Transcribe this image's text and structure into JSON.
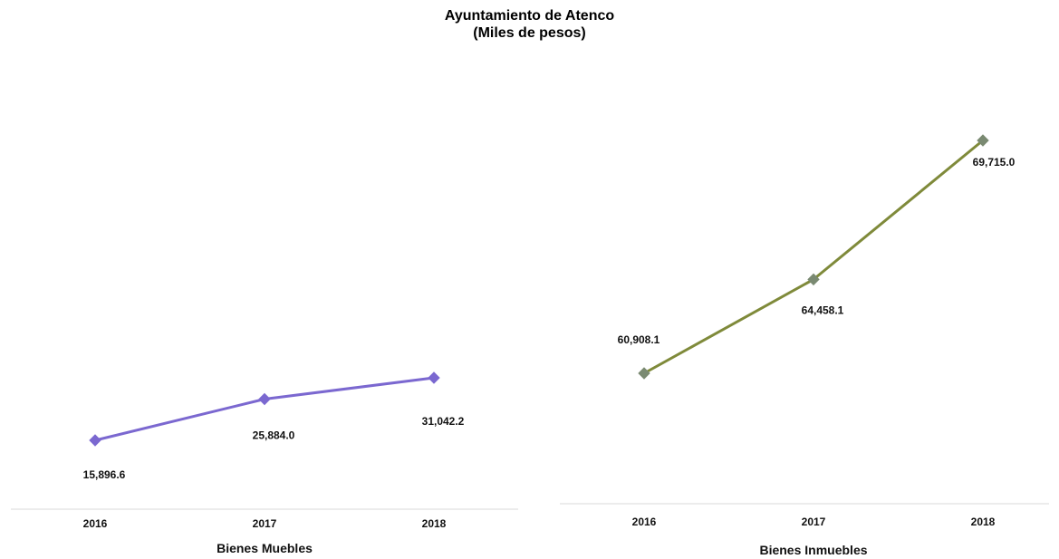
{
  "title": "Ayuntamiento de Atenco",
  "subtitle": "(Miles de pesos)",
  "chart_data": [
    {
      "type": "line",
      "xlabel": "Bienes Muebles",
      "ylabel": "",
      "categories": [
        "2016",
        "2017",
        "2018"
      ],
      "values": [
        15896.6,
        25884.0,
        31042.2
      ],
      "data_labels": [
        "15,896.6",
        "25,884.0",
        "31,042.2"
      ],
      "color": "#7B68D0",
      "marker": "diamond",
      "grid": false
    },
    {
      "type": "line",
      "xlabel": "Bienes Inmuebles",
      "ylabel": "",
      "categories": [
        "2016",
        "2017",
        "2018"
      ],
      "values": [
        60908.1,
        64458.1,
        69715.0
      ],
      "data_labels": [
        "60,908.1",
        "64,458.1",
        "69,715.0"
      ],
      "color": "#7F8A3A",
      "marker_color": "#7A8A72",
      "marker": "diamond",
      "grid": false
    }
  ]
}
